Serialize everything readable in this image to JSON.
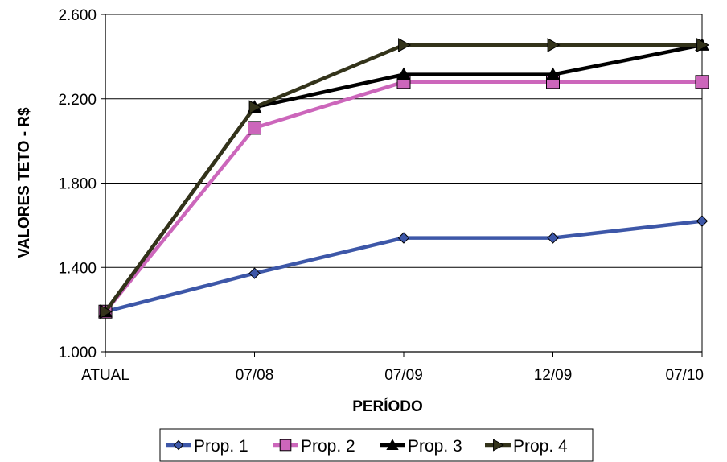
{
  "chart_data": {
    "type": "line",
    "title": "",
    "xlabel": "PERÍODO",
    "ylabel": "VALORES TETO - R$",
    "categories": [
      "ATUAL",
      "07/08",
      "07/09",
      "12/09",
      "07/10"
    ],
    "y_tick_labels": [
      "1.000",
      "1.400",
      "1.800",
      "2.200",
      "2.600"
    ],
    "y_ticks": [
      1000,
      1400,
      1800,
      2200,
      2600
    ],
    "ylim": [
      1000,
      2600
    ],
    "grid": "horizontal",
    "legend_position": "bottom",
    "series": [
      {
        "name": "Prop. 1",
        "color": "#3D57A8",
        "marker": "diamond",
        "marker_fill": "#3D57A8",
        "values": [
          1190,
          1372,
          1540,
          1540,
          1620
        ]
      },
      {
        "name": "Prop. 2",
        "color": "#CC66BB",
        "marker": "square",
        "marker_fill": "#CC66BB",
        "values": [
          1190,
          2062,
          2280,
          2280,
          2280
        ]
      },
      {
        "name": "Prop. 3",
        "color": "#000000",
        "marker": "triangle",
        "marker_fill": "#000000",
        "values": [
          1190,
          2160,
          2315,
          2315,
          2455
        ]
      },
      {
        "name": "Prop. 4",
        "color": "#33331A",
        "marker": "arrow-right",
        "marker_fill": "#33331A",
        "values": [
          1190,
          2160,
          2455,
          2455,
          2455
        ]
      }
    ]
  }
}
